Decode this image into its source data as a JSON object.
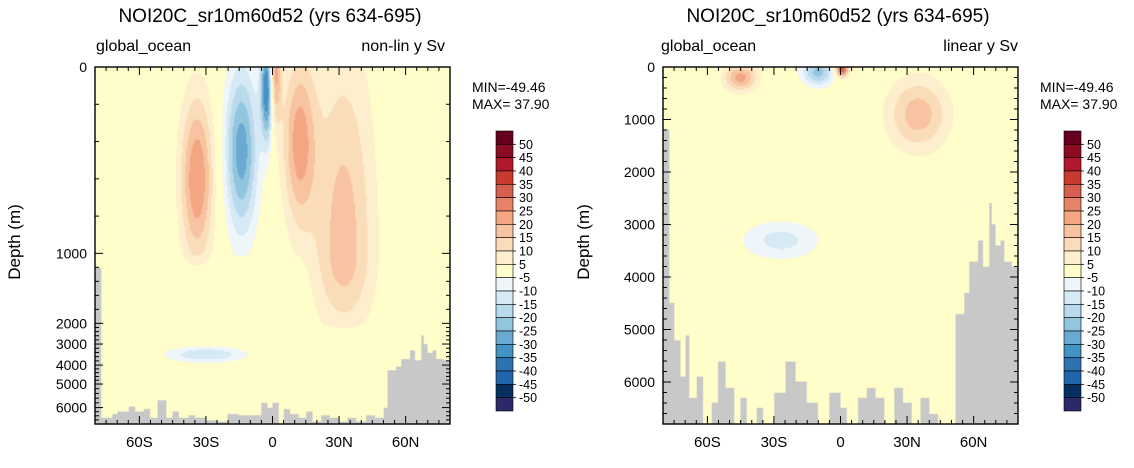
{
  "chart_data": [
    {
      "type": "heatmap",
      "title": "NOI20C_sr10m60d52 (yrs 634-695)",
      "left_string": "global_ocean",
      "right_string": "non-lin y Sv",
      "ylabel": "Depth (m)",
      "x_ticks": [
        "60S",
        "30S",
        "0",
        "30N",
        "60N"
      ],
      "x_tick_values": [
        -60,
        -30,
        0,
        30,
        60
      ],
      "xlim": [
        -80,
        80
      ],
      "y_ticks": [
        "0",
        "1000",
        "2000",
        "3000",
        "4000",
        "5000",
        "6000"
      ],
      "y_tick_values": [
        0,
        1000,
        2000,
        3000,
        4000,
        5000,
        6000
      ],
      "y_scale": "non-linear",
      "ylim": [
        0,
        6800
      ],
      "stats": [
        "MIN=-49.46",
        "MAX= 37.90"
      ],
      "min": -49.46,
      "max": 37.9,
      "features": [
        {
          "lat": -34,
          "depth": 600,
          "value": 25
        },
        {
          "lat": -2,
          "depth": 100,
          "value": -49
        },
        {
          "lat": -14,
          "depth": 450,
          "value": -28
        },
        {
          "lat": 0.3,
          "depth": 40,
          "value": 37
        },
        {
          "lat": 12,
          "depth": 400,
          "value": 22
        },
        {
          "lat": 32,
          "depth": 1000,
          "value": 18
        },
        {
          "lat": -30,
          "depth": 3500,
          "value": -15
        }
      ],
      "mask": [
        [
          -80,
          1200
        ],
        [
          -77,
          6500
        ],
        [
          -75,
          6500
        ],
        [
          -72,
          6300
        ],
        [
          -70,
          6200
        ],
        [
          -68,
          6200
        ],
        [
          -65,
          5950
        ],
        [
          -62,
          6200
        ],
        [
          -58,
          6100
        ],
        [
          -55,
          6500
        ],
        [
          -52,
          5700
        ],
        [
          -48,
          6500
        ],
        [
          -45,
          6200
        ],
        [
          -42,
          6500
        ],
        [
          -38,
          6400
        ],
        [
          -35,
          6500
        ],
        [
          -30,
          6600
        ],
        [
          -25,
          6700
        ],
        [
          -20,
          6300
        ],
        [
          -15,
          6400
        ],
        [
          -10,
          6400
        ],
        [
          -5,
          5800
        ],
        [
          -2,
          6000
        ],
        [
          0,
          5800
        ],
        [
          3,
          6800
        ],
        [
          5,
          6100
        ],
        [
          8,
          6300
        ],
        [
          12,
          6500
        ],
        [
          15,
          6200
        ],
        [
          18,
          6700
        ],
        [
          22,
          6400
        ],
        [
          26,
          6500
        ],
        [
          30,
          6700
        ],
        [
          34,
          6500
        ],
        [
          38,
          6700
        ],
        [
          42,
          6400
        ],
        [
          46,
          6500
        ],
        [
          50,
          6000
        ],
        [
          52,
          4300
        ],
        [
          56,
          4100
        ],
        [
          58,
          3700
        ],
        [
          62,
          3300
        ],
        [
          64,
          3800
        ],
        [
          67,
          2600
        ],
        [
          68,
          3000
        ],
        [
          70,
          3400
        ],
        [
          72,
          3300
        ],
        [
          74,
          3700
        ],
        [
          77,
          3800
        ],
        [
          80,
          4400
        ]
      ],
      "colorbar": {
        "labels": [
          "50",
          "45",
          "40",
          "35",
          "30",
          "25",
          "20",
          "15",
          "10",
          "5",
          "-5",
          "-10",
          "-15",
          "-20",
          "-25",
          "-30",
          "-35",
          "-40",
          "-45",
          "-50"
        ],
        "colors": [
          "#67001f",
          "#8e0b24",
          "#b2182b",
          "#c8392e",
          "#d6604d",
          "#e58267",
          "#f4a582",
          "#f8c3a1",
          "#fbdcb8",
          "#fdeecd",
          "#fffdc9",
          "#eef6fa",
          "#d6eaf5",
          "#b9d9ec",
          "#92c5de",
          "#6aa9d1",
          "#4393c3",
          "#2e72b0",
          "#2166ac",
          "#053061",
          "#2a2a6a"
        ]
      },
      "land_color": "#c8c8c8",
      "background_color": "#fffdc9"
    },
    {
      "type": "heatmap",
      "title": "NOI20C_sr10m60d52 (yrs 634-695)",
      "left_string": "global_ocean",
      "right_string": "linear y Sv",
      "ylabel": "Depth (m)",
      "x_ticks": [
        "60S",
        "30S",
        "0",
        "30N",
        "60N"
      ],
      "x_tick_values": [
        -60,
        -30,
        0,
        30,
        60
      ],
      "xlim": [
        -80,
        80
      ],
      "y_ticks": [
        "0",
        "1000",
        "2000",
        "3000",
        "4000",
        "5000",
        "6000"
      ],
      "y_tick_values": [
        0,
        1000,
        2000,
        3000,
        4000,
        5000,
        6000
      ],
      "y_scale": "linear",
      "ylim": [
        0,
        6800
      ],
      "stats": [
        "MIN=-49.46",
        "MAX= 37.90"
      ],
      "min": -49.46,
      "max": 37.9,
      "features": [
        {
          "lat": -45,
          "depth": 200,
          "value": 22
        },
        {
          "lat": -10,
          "depth": 100,
          "value": -22
        },
        {
          "lat": 0.5,
          "depth": 40,
          "value": 37
        },
        {
          "lat": 35,
          "depth": 900,
          "value": 18
        },
        {
          "lat": -27,
          "depth": 3300,
          "value": -12
        }
      ],
      "mask": [
        [
          -80,
          1200
        ],
        [
          -77,
          4500
        ],
        [
          -75,
          5200
        ],
        [
          -72,
          5900
        ],
        [
          -70,
          5100
        ],
        [
          -68,
          6300
        ],
        [
          -65,
          5900
        ],
        [
          -62,
          6800
        ],
        [
          -58,
          6400
        ],
        [
          -55,
          5600
        ],
        [
          -52,
          6100
        ],
        [
          -48,
          6800
        ],
        [
          -45,
          6300
        ],
        [
          -42,
          6800
        ],
        [
          -38,
          6500
        ],
        [
          -35,
          6800
        ],
        [
          -30,
          6200
        ],
        [
          -25,
          5600
        ],
        [
          -20,
          6000
        ],
        [
          -15,
          6400
        ],
        [
          -10,
          6800
        ],
        [
          -5,
          6200
        ],
        [
          0,
          6500
        ],
        [
          3,
          6800
        ],
        [
          8,
          6300
        ],
        [
          12,
          6100
        ],
        [
          16,
          6300
        ],
        [
          20,
          6800
        ],
        [
          24,
          6100
        ],
        [
          28,
          6400
        ],
        [
          32,
          6800
        ],
        [
          36,
          6300
        ],
        [
          40,
          6600
        ],
        [
          44,
          6800
        ],
        [
          48,
          6800
        ],
        [
          52,
          4700
        ],
        [
          56,
          4300
        ],
        [
          58,
          3700
        ],
        [
          62,
          3300
        ],
        [
          64,
          3800
        ],
        [
          67,
          2600
        ],
        [
          68,
          3000
        ],
        [
          70,
          3400
        ],
        [
          72,
          3300
        ],
        [
          74,
          3700
        ],
        [
          77,
          3800
        ],
        [
          80,
          4300
        ]
      ],
      "colorbar": {
        "labels": [
          "50",
          "45",
          "40",
          "35",
          "30",
          "25",
          "20",
          "15",
          "10",
          "5",
          "-5",
          "-10",
          "-15",
          "-20",
          "-25",
          "-30",
          "-35",
          "-40",
          "-45",
          "-50"
        ],
        "colors": [
          "#67001f",
          "#8e0b24",
          "#b2182b",
          "#c8392e",
          "#d6604d",
          "#e58267",
          "#f4a582",
          "#f8c3a1",
          "#fbdcb8",
          "#fdeecd",
          "#fffdc9",
          "#eef6fa",
          "#d6eaf5",
          "#b9d9ec",
          "#92c5de",
          "#6aa9d1",
          "#4393c3",
          "#2e72b0",
          "#2166ac",
          "#053061",
          "#2a2a6a"
        ]
      },
      "land_color": "#c8c8c8",
      "background_color": "#fffdc9"
    }
  ]
}
